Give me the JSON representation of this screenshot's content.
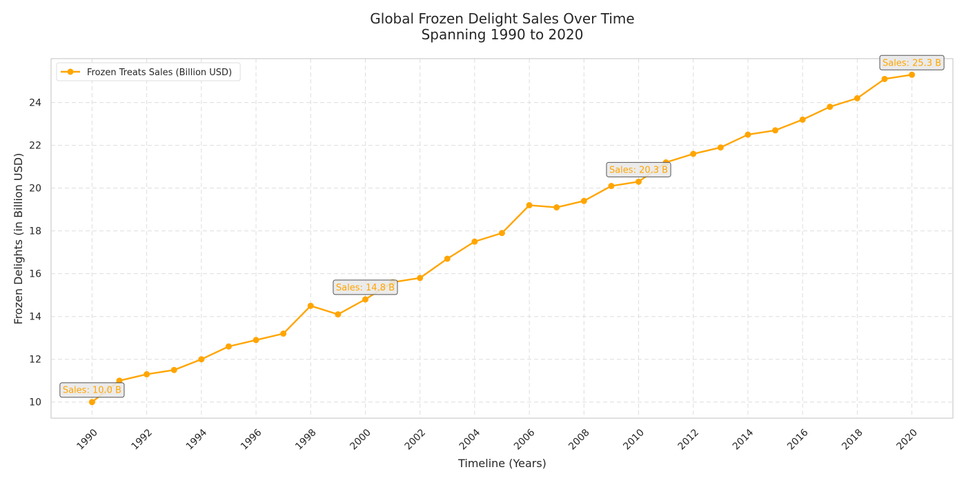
{
  "chart_data": {
    "type": "line",
    "title": "Global Frozen Delight Sales Over Time",
    "subtitle": "Spanning 1990 to 2020",
    "xlabel": "Timeline (Years)",
    "ylabel": "Frozen Delights (in Billion USD)",
    "xlim": [
      1988.5,
      2021.5
    ],
    "ylim": [
      9.25,
      26.05
    ],
    "xticks": [
      1990,
      1992,
      1994,
      1996,
      1998,
      2000,
      2002,
      2004,
      2006,
      2008,
      2010,
      2012,
      2014,
      2016,
      2018,
      2020
    ],
    "yticks": [
      10,
      12,
      14,
      16,
      18,
      20,
      22,
      24
    ],
    "grid": true,
    "legend_position": "top-left",
    "series": [
      {
        "name": "Frozen Treats Sales (Billion USD)",
        "color": "#FFA500",
        "x": [
          1990,
          1991,
          1992,
          1993,
          1994,
          1995,
          1996,
          1997,
          1998,
          1999,
          2000,
          2001,
          2002,
          2003,
          2004,
          2005,
          2006,
          2007,
          2008,
          2009,
          2010,
          2011,
          2012,
          2013,
          2014,
          2015,
          2016,
          2017,
          2018,
          2019,
          2020
        ],
        "y": [
          10.0,
          11.0,
          11.3,
          11.5,
          12.0,
          12.6,
          12.9,
          13.2,
          14.5,
          14.1,
          14.8,
          15.6,
          15.8,
          16.7,
          17.5,
          17.9,
          19.2,
          19.1,
          19.4,
          20.1,
          20.3,
          21.2,
          21.6,
          21.9,
          22.5,
          22.7,
          23.2,
          23.8,
          24.2,
          25.1,
          25.3
        ]
      }
    ],
    "annotations": [
      {
        "x": 1990,
        "y": 10.0,
        "text": "Sales: 10.0 B"
      },
      {
        "x": 2000,
        "y": 14.8,
        "text": "Sales: 14.8 B"
      },
      {
        "x": 2010,
        "y": 20.3,
        "text": "Sales: 20.3 B"
      },
      {
        "x": 2020,
        "y": 25.3,
        "text": "Sales: 25.3 B"
      }
    ]
  }
}
